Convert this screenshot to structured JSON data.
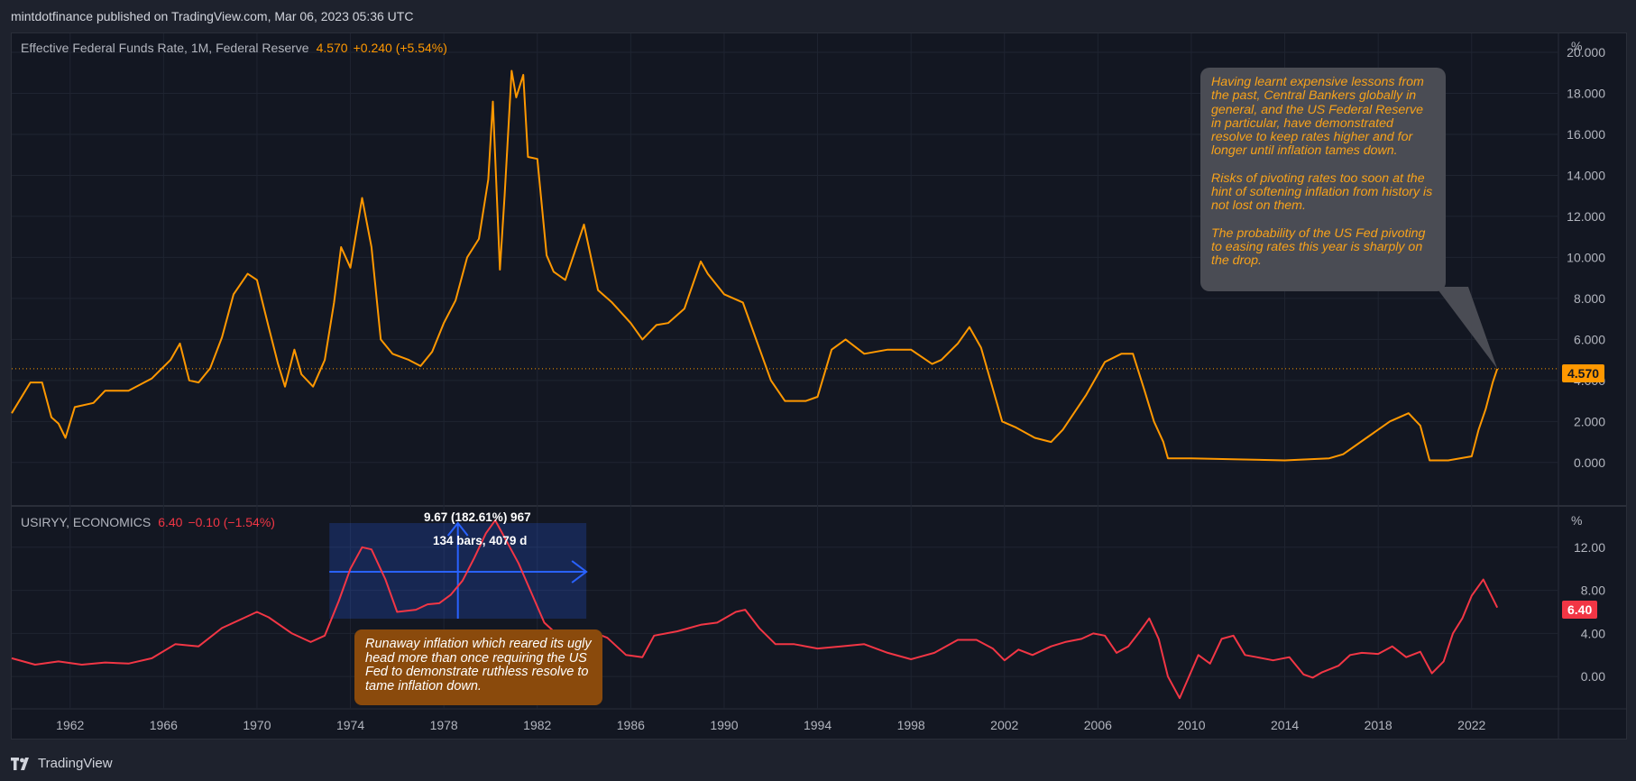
{
  "header": {
    "attribution": "mintdotfinance published on TradingView.com, Mar 06, 2023 05:36 UTC"
  },
  "footer": {
    "brand": "TradingView"
  },
  "colors": {
    "fed": "#ff9800",
    "cpi": "#f23645",
    "measure": "#2962ff",
    "background": "#131722"
  },
  "chart_data": [
    {
      "type": "line",
      "legend": {
        "name": "Effective Federal Funds Rate, 1M, Federal Reserve",
        "value": "4.570",
        "change": "+0.240 (+5.54%)"
      },
      "unit_label": "%",
      "last_value_label": "4.570",
      "ylim": [
        -1.9,
        20.0
      ],
      "y_ticks": [
        "0.000",
        "2.000",
        "4.000",
        "6.000",
        "8.000",
        "10.000",
        "12.000",
        "14.000",
        "16.000",
        "18.000",
        "20.000"
      ],
      "x": [
        1959.5,
        1960.3,
        1960.8,
        1961.2,
        1961.5,
        1961.8,
        1962.2,
        1963.0,
        1963.5,
        1964.5,
        1965.5,
        1966.3,
        1966.7,
        1967.1,
        1967.5,
        1968.0,
        1968.5,
        1969.0,
        1969.6,
        1970.0,
        1970.5,
        1970.9,
        1971.2,
        1971.6,
        1971.9,
        1972.4,
        1972.9,
        1973.3,
        1973.6,
        1974.0,
        1974.5,
        1974.9,
        1975.3,
        1975.8,
        1976.5,
        1977.0,
        1977.5,
        1978.0,
        1978.5,
        1979.0,
        1979.5,
        1979.9,
        1980.1,
        1980.4,
        1980.6,
        1980.9,
        1981.1,
        1981.4,
        1981.6,
        1982.0,
        1982.4,
        1982.7,
        1983.2,
        1984.0,
        1984.6,
        1985.2,
        1986.0,
        1986.5,
        1987.1,
        1987.6,
        1988.3,
        1989.0,
        1989.3,
        1990.0,
        1990.8,
        1991.4,
        1992.0,
        1992.6,
        1993.5,
        1994.0,
        1994.6,
        1995.2,
        1996.0,
        1997.0,
        1998.0,
        1998.9,
        1999.3,
        2000.0,
        2000.5,
        2001.0,
        2001.5,
        2001.9,
        2002.5,
        2003.3,
        2004.0,
        2004.5,
        2005.5,
        2006.3,
        2007.0,
        2007.5,
        2008.0,
        2008.4,
        2008.8,
        2009.0,
        2010.0,
        2012.0,
        2014.0,
        2015.9,
        2016.5,
        2017.5,
        2018.5,
        2019.3,
        2019.8,
        2020.2,
        2021.0,
        2022.0,
        2022.3,
        2022.6,
        2022.9,
        2023.1
      ],
      "values": [
        2.4,
        3.9,
        3.9,
        2.2,
        1.9,
        1.2,
        2.7,
        2.9,
        3.5,
        3.5,
        4.1,
        5.0,
        5.8,
        4.0,
        3.9,
        4.6,
        6.1,
        8.2,
        9.2,
        8.9,
        6.6,
        4.8,
        3.7,
        5.5,
        4.3,
        3.7,
        5.0,
        7.8,
        10.5,
        9.5,
        12.9,
        10.5,
        6.0,
        5.3,
        5.0,
        4.7,
        5.4,
        6.8,
        7.9,
        10.0,
        10.9,
        13.8,
        17.6,
        9.4,
        13.0,
        19.1,
        17.8,
        18.9,
        14.9,
        14.8,
        10.1,
        9.3,
        8.9,
        11.6,
        8.4,
        7.8,
        6.8,
        6.0,
        6.7,
        6.8,
        7.5,
        9.8,
        9.2,
        8.2,
        7.8,
        5.9,
        4.0,
        3.0,
        3.0,
        3.2,
        5.5,
        6.0,
        5.3,
        5.5,
        5.5,
        4.8,
        5.0,
        5.8,
        6.6,
        5.6,
        3.6,
        2.0,
        1.7,
        1.2,
        1.0,
        1.6,
        3.3,
        4.9,
        5.3,
        5.3,
        3.5,
        2.0,
        1.0,
        0.2,
        0.2,
        0.15,
        0.1,
        0.2,
        0.4,
        1.2,
        2.0,
        2.4,
        1.8,
        0.1,
        0.1,
        0.3,
        1.6,
        2.6,
        3.9,
        4.57
      ]
    },
    {
      "type": "line",
      "legend": {
        "name": "USIRYY, ECONOMICS",
        "value": "6.40",
        "change": "−0.10 (−1.54%)"
      },
      "unit_label": "%",
      "last_value_label": "6.40",
      "ylim": [
        -3.0,
        15.5
      ],
      "y_ticks": [
        "0.00",
        "4.00",
        "8.00",
        "12.00"
      ],
      "x": [
        1959.5,
        1960.5,
        1961.5,
        1962.5,
        1963.5,
        1964.5,
        1965.5,
        1966.5,
        1967.5,
        1968.5,
        1969.5,
        1970.0,
        1970.5,
        1971.5,
        1972.3,
        1972.9,
        1973.5,
        1974.0,
        1974.5,
        1974.9,
        1975.5,
        1976.0,
        1976.8,
        1977.3,
        1977.8,
        1978.3,
        1978.8,
        1979.3,
        1979.8,
        1980.2,
        1980.7,
        1981.2,
        1981.7,
        1982.3,
        1982.8,
        1983.3,
        1983.8,
        1984.3,
        1985.0,
        1985.8,
        1986.5,
        1987.0,
        1988.0,
        1989.0,
        1989.7,
        1990.5,
        1990.9,
        1991.5,
        1992.2,
        1993.0,
        1994.0,
        1995.0,
        1996.0,
        1997.0,
        1998.0,
        1999.0,
        2000.0,
        2000.8,
        2001.5,
        2002.0,
        2002.6,
        2003.2,
        2004.0,
        2004.6,
        2005.3,
        2005.8,
        2006.3,
        2006.8,
        2007.3,
        2007.8,
        2008.2,
        2008.6,
        2009.0,
        2009.5,
        2009.8,
        2010.3,
        2010.8,
        2011.3,
        2011.8,
        2012.3,
        2012.8,
        2013.5,
        2014.2,
        2014.8,
        2015.2,
        2015.6,
        2016.3,
        2016.8,
        2017.3,
        2018.0,
        2018.6,
        2019.2,
        2019.8,
        2020.3,
        2020.8,
        2021.2,
        2021.6,
        2022.0,
        2022.5,
        2022.8,
        2023.1
      ],
      "values": [
        1.7,
        1.1,
        1.4,
        1.1,
        1.3,
        1.2,
        1.7,
        3.0,
        2.8,
        4.5,
        5.5,
        6.0,
        5.5,
        4.0,
        3.2,
        3.8,
        7.0,
        10.0,
        12.0,
        11.8,
        9.0,
        6.0,
        6.2,
        6.7,
        6.8,
        7.6,
        8.9,
        11.0,
        13.3,
        14.5,
        12.5,
        10.5,
        8.0,
        5.0,
        4.0,
        2.8,
        4.0,
        4.2,
        3.6,
        2.0,
        1.8,
        3.8,
        4.2,
        4.8,
        5.0,
        6.0,
        6.2,
        4.5,
        3.0,
        3.0,
        2.6,
        2.8,
        3.0,
        2.2,
        1.6,
        2.2,
        3.4,
        3.4,
        2.6,
        1.5,
        2.5,
        2.0,
        2.8,
        3.2,
        3.5,
        4.0,
        3.8,
        2.2,
        2.8,
        4.2,
        5.4,
        3.5,
        0.0,
        -2.0,
        -0.5,
        2.0,
        1.2,
        3.5,
        3.8,
        2.0,
        1.8,
        1.5,
        1.8,
        0.2,
        -0.1,
        0.4,
        1.0,
        2.0,
        2.2,
        2.1,
        2.8,
        1.8,
        2.3,
        0.3,
        1.4,
        4.0,
        5.4,
        7.5,
        9.0,
        7.7,
        6.4
      ]
    }
  ],
  "x_axis": {
    "ticks": [
      "1962",
      "1966",
      "1970",
      "1974",
      "1978",
      "1982",
      "1986",
      "1990",
      "1994",
      "1998",
      "2002",
      "2006",
      "2010",
      "2014",
      "2018",
      "2022"
    ]
  },
  "annotations": {
    "fed_callout": [
      "Having learnt expensive lessons from the past, Central Bankers globally in general, and the US Federal Reserve in particular, have demonstrated resolve to keep rates higher and for longer until inflation tames down.",
      "Risks of pivoting rates too soon at the hint of softening inflation from history is not lost on them.",
      "The probability of the US Fed pivoting to easing rates this year is sharply on the drop."
    ],
    "inflation_callout": "Runaway inflation which reared its ugly head more than once requiring the US Fed to demonstrate ruthless resolve to tame inflation down.",
    "measure": {
      "line1": "9.67 (182.61%) 967",
      "line2": "134 bars, 4079 d"
    }
  }
}
